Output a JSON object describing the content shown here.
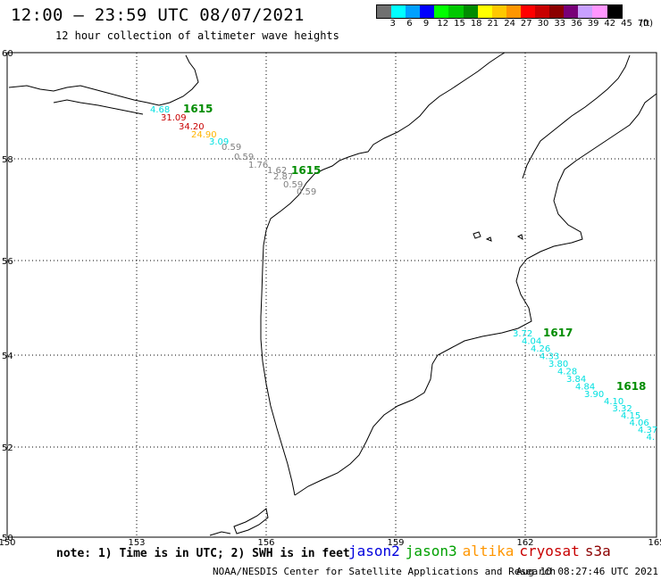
{
  "header": {
    "title": "12:00 — 23:59 UTC 08/07/2021",
    "subtitle": "12 hour collection of altimeter wave heights"
  },
  "legend": {
    "unit": "(ft)",
    "bins": [
      {
        "label": "3",
        "color": "#707070"
      },
      {
        "label": "6",
        "color": "#00ffff"
      },
      {
        "label": "9",
        "color": "#00a0ff"
      },
      {
        "label": "12",
        "color": "#0000ff"
      },
      {
        "label": "15",
        "color": "#00ff00"
      },
      {
        "label": "18",
        "color": "#00c800"
      },
      {
        "label": "21",
        "color": "#008c00"
      },
      {
        "label": "24",
        "color": "#ffff00"
      },
      {
        "label": "27",
        "color": "#ffc800"
      },
      {
        "label": "30",
        "color": "#ff9600"
      },
      {
        "label": "33",
        "color": "#ff0000"
      },
      {
        "label": "36",
        "color": "#c80000"
      },
      {
        "label": "39",
        "color": "#8c0000"
      },
      {
        "label": "42",
        "color": "#780078"
      },
      {
        "label": "45",
        "color": "#c8a0ff"
      },
      {
        "label": "70",
        "color": "#ff96ff"
      },
      {
        "label": "",
        "color": "#000000"
      }
    ]
  },
  "map": {
    "lon_ticks": [
      "150",
      "153",
      "156",
      "159",
      "162",
      "165"
    ],
    "lat_ticks": [
      "60",
      "58",
      "56",
      "54",
      "52",
      "50"
    ],
    "passes": [
      {
        "time": "1615",
        "satellite": "jason3",
        "color": "#008c00",
        "points": [
          {
            "value": "4.68",
            "color": "#00e0e0"
          },
          {
            "value": "31.09",
            "color": "#c80000"
          },
          {
            "value": "34.20",
            "color": "#c80000"
          },
          {
            "value": "24.90",
            "color": "#ffb400"
          },
          {
            "value": "3.09",
            "color": "#00e0e0"
          },
          {
            "value": "0.59",
            "color": "#808080"
          },
          {
            "value": "0.59",
            "color": "#808080"
          },
          {
            "value": "1.76",
            "color": "#808080"
          },
          {
            "value": "1.62",
            "color": "#808080"
          },
          {
            "value": "2.87",
            "color": "#808080"
          },
          {
            "value": "0.59",
            "color": "#808080"
          },
          {
            "value": "0.59",
            "color": "#808080"
          }
        ]
      },
      {
        "time": "1615",
        "satellite": "jason3",
        "color": "#008c00",
        "points": []
      },
      {
        "time": "1617",
        "satellite": "jason3",
        "color": "#008c00",
        "points": [
          {
            "value": "3.72",
            "color": "#00e0e0"
          },
          {
            "value": "4.04",
            "color": "#00e0e0"
          },
          {
            "value": "4.26",
            "color": "#00e0e0"
          },
          {
            "value": "4.33",
            "color": "#00e0e0"
          },
          {
            "value": "3.80",
            "color": "#00e0e0"
          },
          {
            "value": "4.28",
            "color": "#00e0e0"
          },
          {
            "value": "3.84",
            "color": "#00e0e0"
          },
          {
            "value": "4.84",
            "color": "#00e0e0"
          },
          {
            "value": "3.90",
            "color": "#00e0e0"
          }
        ]
      },
      {
        "time": "1618",
        "satellite": "jason3",
        "color": "#008c00",
        "points": [
          {
            "value": "4.10",
            "color": "#00e0e0"
          },
          {
            "value": "3.32",
            "color": "#00e0e0"
          },
          {
            "value": "4.15",
            "color": "#00e0e0"
          },
          {
            "value": "4.06",
            "color": "#00e0e0"
          },
          {
            "value": "4.37",
            "color": "#00e0e0"
          },
          {
            "value": "4.",
            "color": "#00e0e0"
          }
        ]
      }
    ]
  },
  "footer": {
    "note": "note: 1) Time is in UTC; 2) SWH is in feet",
    "satellites": [
      {
        "name": "jason2",
        "color": "#0000dd"
      },
      {
        "name": "jason3",
        "color": "#00a000"
      },
      {
        "name": "altika",
        "color": "#ff9600"
      },
      {
        "name": "cryosat",
        "color": "#c80000"
      },
      {
        "name": "s3a",
        "color": "#8c0000"
      }
    ],
    "credit": "NOAA/NESDIS Center for Satellite Applications and Research",
    "timestamp": "Aug 10 08:27:46 UTC 2021"
  }
}
